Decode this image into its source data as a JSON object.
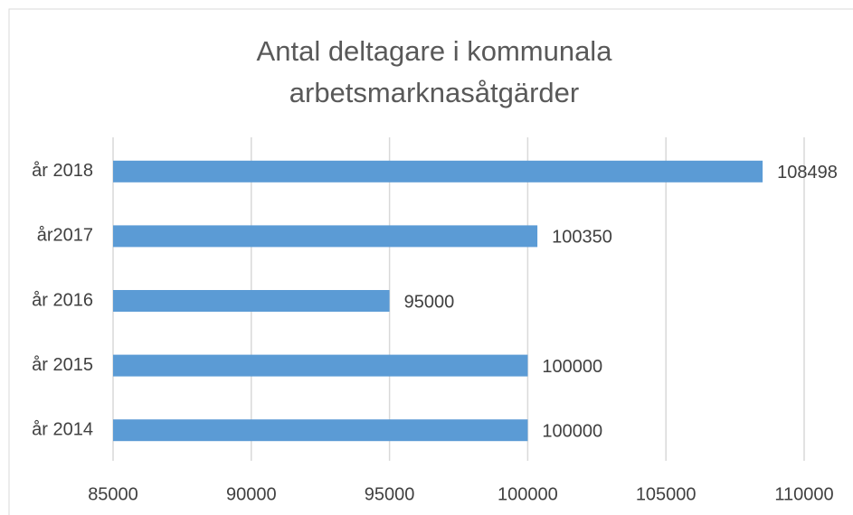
{
  "chart_data": {
    "type": "bar",
    "orientation": "horizontal",
    "title": "Antal deltagare i kommunala arbetsmarknasåtgärder",
    "categories": [
      "år 2018",
      "år2017",
      "år 2016",
      "år 2015",
      "år 2014"
    ],
    "values": [
      108498,
      100350,
      95000,
      100000,
      100000
    ],
    "color": "#5b9bd5",
    "xlim": [
      85000,
      110000
    ],
    "xticks": [
      85000,
      90000,
      95000,
      100000,
      105000,
      110000
    ],
    "grid": true
  }
}
